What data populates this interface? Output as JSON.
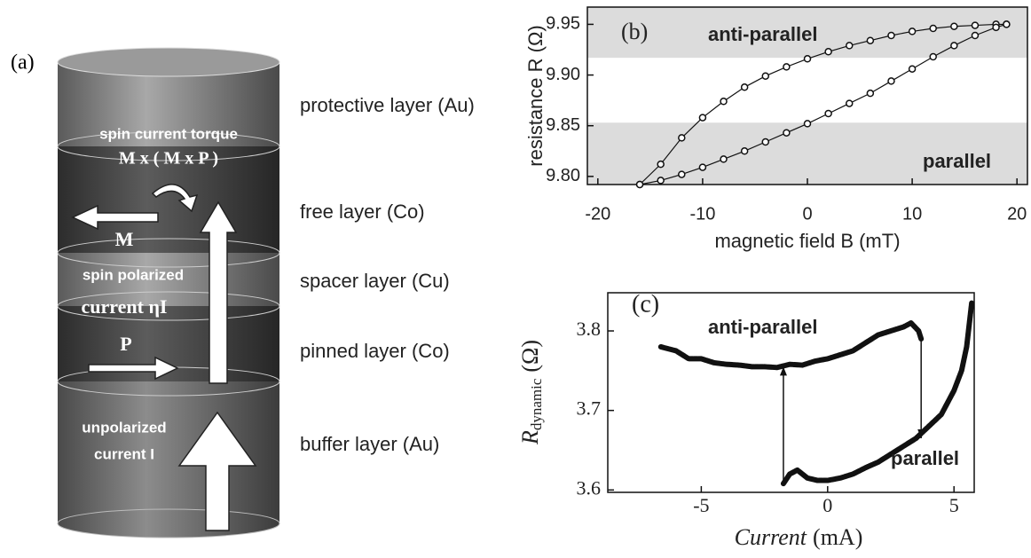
{
  "diagram": {
    "panel_label": "(a)",
    "layers": [
      "protective layer (Au)",
      "free layer (Co)",
      "spacer layer (Cu)",
      "pinned layer (Co)",
      "buffer layer (Au)"
    ],
    "inner_texts": [
      "spin current torque",
      "M x ( M x P )",
      "M",
      "spin polarized",
      "current ηI",
      "P",
      "unpolarized",
      "current I"
    ]
  },
  "chart_data": [
    {
      "type": "scatter",
      "panel_label": "(b)",
      "xlabel": "magnetic field B (mT)",
      "ylabel": "resistance R (Ω)",
      "xlim": [
        -21,
        21
      ],
      "ylim": [
        9.792,
        9.967
      ],
      "xticks": [
        -20,
        -10,
        0,
        10,
        20
      ],
      "yticks": [
        {
          "value": 9.8,
          "label": "9.80"
        },
        9.85,
        {
          "value": 9.9,
          "label": "9.90"
        },
        9.95
      ],
      "shade_above": 9.917,
      "shade_below": 9.853,
      "shade_color": "#dcdcdc",
      "annotations": [
        "anti-parallel",
        "parallel"
      ],
      "series": [
        {
          "color": "#111",
          "x": [
            -16,
            -14,
            -12,
            -10,
            -8,
            -6,
            -4,
            -2,
            0,
            2,
            4,
            6,
            8,
            10,
            12,
            14,
            16,
            18,
            19
          ],
          "values": [
            9.792,
            9.812,
            9.838,
            9.858,
            9.874,
            9.888,
            9.899,
            9.908,
            9.916,
            9.923,
            9.929,
            9.934,
            9.939,
            9.943,
            9.946,
            9.948,
            9.949,
            9.95,
            9.95
          ]
        },
        {
          "color": "#111",
          "x": [
            -16,
            -14,
            -12,
            -10,
            -8,
            -6,
            -4,
            -2,
            0,
            2,
            4,
            6,
            8,
            10,
            12,
            14,
            16,
            18,
            19
          ],
          "values": [
            9.792,
            9.796,
            9.802,
            9.809,
            9.817,
            9.825,
            9.834,
            9.843,
            9.852,
            9.862,
            9.872,
            9.882,
            9.894,
            9.906,
            9.918,
            9.929,
            9.939,
            9.947,
            9.95
          ]
        }
      ]
    },
    {
      "type": "line",
      "panel_label": "(c)",
      "xlabel": "Current",
      "xlabel_unit": "(mA)",
      "ylabel": "R",
      "ylabel_sub": "dynamic",
      "ylabel_unit": "(Ω)",
      "xlim": [
        -8.7,
        5.8
      ],
      "ylim": [
        3.597,
        3.848
      ],
      "xticks": [
        -5,
        0,
        5
      ],
      "yticks": [
        3.6,
        3.7,
        3.8
      ],
      "annotations": [
        "anti-parallel",
        "parallel"
      ],
      "arrows": [
        {
          "x": 3.7,
          "from": 3.79,
          "to": 3.665
        },
        {
          "x": -1.75,
          "from": 3.608,
          "to": 3.755
        }
      ],
      "series": [
        {
          "color": "#111",
          "x": [
            -6.6,
            -6,
            -5.5,
            -5,
            -4.5,
            -4,
            -3.5,
            -3,
            -2.5,
            -2,
            -1.5,
            -1,
            -0.5,
            0,
            0.5,
            1,
            1.5,
            2,
            2.5,
            3,
            3.3,
            3.6,
            3.7
          ],
          "values": [
            3.78,
            3.775,
            3.765,
            3.765,
            3.76,
            3.758,
            3.757,
            3.755,
            3.755,
            3.754,
            3.758,
            3.757,
            3.762,
            3.765,
            3.77,
            3.775,
            3.785,
            3.795,
            3.8,
            3.805,
            3.81,
            3.8,
            3.79
          ]
        },
        {
          "color": "#111",
          "x": [
            -1.75,
            -1.5,
            -1.2,
            -0.8,
            -0.4,
            0,
            0.5,
            1,
            1.5,
            2,
            2.5,
            3,
            3.5,
            4,
            4.5,
            5,
            5.3,
            5.5,
            5.7
          ],
          "values": [
            3.608,
            3.62,
            3.625,
            3.615,
            3.612,
            3.612,
            3.615,
            3.62,
            3.628,
            3.635,
            3.645,
            3.655,
            3.665,
            3.68,
            3.695,
            3.725,
            3.75,
            3.78,
            3.835
          ]
        }
      ]
    }
  ]
}
